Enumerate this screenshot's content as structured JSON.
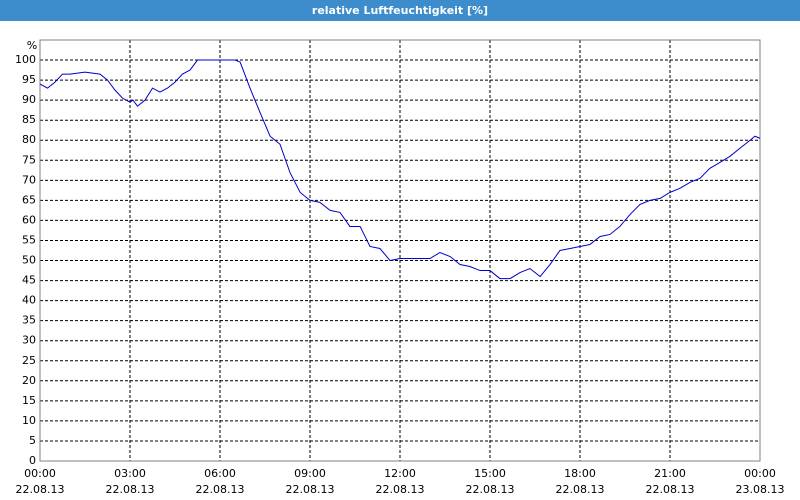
{
  "chart_data": {
    "type": "line",
    "title": "relative Luftfeuchtigkeit [%]",
    "ylabel": "%",
    "xlim": [
      0,
      24
    ],
    "xticks": [
      {
        "value": 0,
        "label": "00:00\n22.08.13"
      },
      {
        "value": 3,
        "label": "03:00\n22.08.13"
      },
      {
        "value": 6,
        "label": "06:00\n22.08.13"
      },
      {
        "value": 9,
        "label": "09:00\n22.08.13"
      },
      {
        "value": 12,
        "label": "12:00\n22.08.13"
      },
      {
        "value": 15,
        "label": "15:00\n22.08.13"
      },
      {
        "value": 18,
        "label": "18:00\n22.08.13"
      },
      {
        "value": 21,
        "label": "21:00\n22.08.13"
      },
      {
        "value": 24,
        "label": "00:00\n23.08.13"
      }
    ],
    "ylim": [
      0,
      105
    ],
    "yticks": [
      0,
      5,
      10,
      15,
      20,
      25,
      30,
      35,
      40,
      45,
      50,
      55,
      60,
      65,
      70,
      75,
      80,
      85,
      90,
      95,
      100
    ],
    "grid": true,
    "series": [
      {
        "name": "relative Luftfeuchtigkeit",
        "color": "#0000cc",
        "x": [
          0,
          0.25,
          0.5,
          0.75,
          1.0,
          1.5,
          2.0,
          2.25,
          2.5,
          2.75,
          3.0,
          3.1,
          3.25,
          3.5,
          3.75,
          4.0,
          4.25,
          4.5,
          4.75,
          5.0,
          5.25,
          5.5,
          6.0,
          6.5,
          6.67,
          7.0,
          7.33,
          7.67,
          8.0,
          8.33,
          8.67,
          9.0,
          9.33,
          9.67,
          10.0,
          10.33,
          10.67,
          11.0,
          11.33,
          11.67,
          12.0,
          12.33,
          12.67,
          13.0,
          13.33,
          13.67,
          14.0,
          14.33,
          14.67,
          15.0,
          15.33,
          15.67,
          16.0,
          16.33,
          16.67,
          17.0,
          17.33,
          17.67,
          18.0,
          18.33,
          18.67,
          19.0,
          19.33,
          19.67,
          20.0,
          20.33,
          20.67,
          21.0,
          21.33,
          21.67,
          22.0,
          22.33,
          22.67,
          23.0,
          23.33,
          23.67,
          23.83,
          24.0
        ],
        "values": [
          94,
          93,
          94.5,
          96.5,
          96.5,
          97,
          96.5,
          95,
          92.5,
          90.5,
          89.5,
          90,
          88.5,
          90,
          93,
          92,
          93,
          94.5,
          96.5,
          97.5,
          100,
          100,
          100,
          100,
          99.5,
          93,
          87,
          81,
          79,
          72,
          67,
          65,
          64.5,
          62.5,
          62,
          58.5,
          58.5,
          53.5,
          53,
          50,
          50.5,
          50.5,
          50.5,
          50.5,
          52,
          51,
          49,
          48.5,
          47.5,
          47.5,
          45.5,
          45.5,
          47,
          48,
          46,
          49,
          52.5,
          53,
          53.5,
          54,
          56,
          56.5,
          58.5,
          61.5,
          64,
          65,
          65.5,
          67,
          68,
          69.5,
          70.5,
          73,
          74.5,
          76,
          78,
          80,
          81,
          80.5
        ]
      }
    ]
  }
}
